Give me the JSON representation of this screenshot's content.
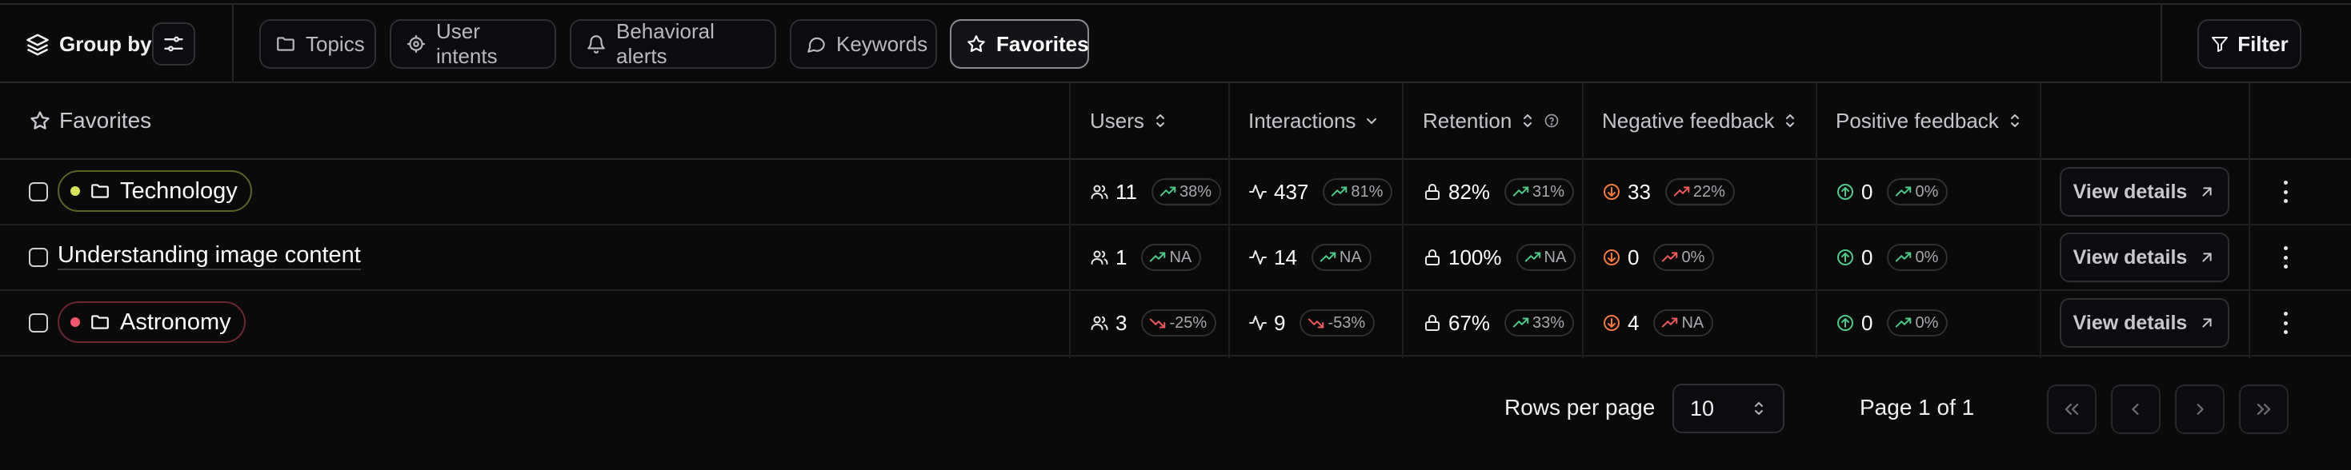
{
  "toolbar": {
    "group_by_label": "Group by",
    "tabs": [
      {
        "label": "Topics",
        "icon": "folder-icon"
      },
      {
        "label": "User intents",
        "icon": "target-icon"
      },
      {
        "label": "Behavioral alerts",
        "icon": "bell-icon"
      },
      {
        "label": "Keywords",
        "icon": "chat-bubble-icon"
      },
      {
        "label": "Favorites",
        "icon": "star-icon",
        "active": true
      }
    ],
    "filter_label": "Filter"
  },
  "table": {
    "headers": {
      "name": "Favorites",
      "users": "Users",
      "interactions": "Interactions",
      "retention": "Retention",
      "negative": "Negative feedback",
      "positive": "Positive feedback"
    },
    "view_details_label": "View details",
    "rows": [
      {
        "name": "Technology",
        "type": "topic",
        "dot_color": "#d6e35a",
        "border_color": "#5c6424",
        "users": "11",
        "users_trend": "38%",
        "users_dir": "up",
        "interactions": "437",
        "interactions_trend": "81%",
        "interactions_dir": "up",
        "retention": "82%",
        "retention_trend": "31%",
        "retention_dir": "up",
        "negative": "33",
        "negative_trend": "22%",
        "negative_dir": "up-bad",
        "positive": "0",
        "positive_trend": "0%",
        "positive_dir": "up"
      },
      {
        "name": "Understanding image content",
        "type": "plain",
        "users": "1",
        "users_trend": "NA",
        "users_dir": "up",
        "interactions": "14",
        "interactions_trend": "NA",
        "interactions_dir": "up",
        "retention": "100%",
        "retention_trend": "NA",
        "retention_dir": "up",
        "negative": "0",
        "negative_trend": "0%",
        "negative_dir": "up-bad",
        "positive": "0",
        "positive_trend": "0%",
        "positive_dir": "up"
      },
      {
        "name": "Astronomy",
        "type": "topic",
        "dot_color": "#f0566e",
        "border_color": "#6a2632",
        "users": "3",
        "users_trend": "-25%",
        "users_dir": "down",
        "interactions": "9",
        "interactions_trend": "-53%",
        "interactions_dir": "down",
        "retention": "67%",
        "retention_trend": "33%",
        "retention_dir": "up",
        "negative": "4",
        "negative_trend": "NA",
        "negative_dir": "up-bad",
        "positive": "0",
        "positive_trend": "0%",
        "positive_dir": "up"
      }
    ]
  },
  "pagination": {
    "rows_per_page_label": "Rows per page",
    "rows_per_page_value": "10",
    "page_label": "Page 1 of 1"
  },
  "colors": {
    "trend_up": "#4fc98a",
    "trend_down": "#ef5a5a",
    "negative_icon": "#f07a3c",
    "positive_icon": "#4fc98a"
  }
}
